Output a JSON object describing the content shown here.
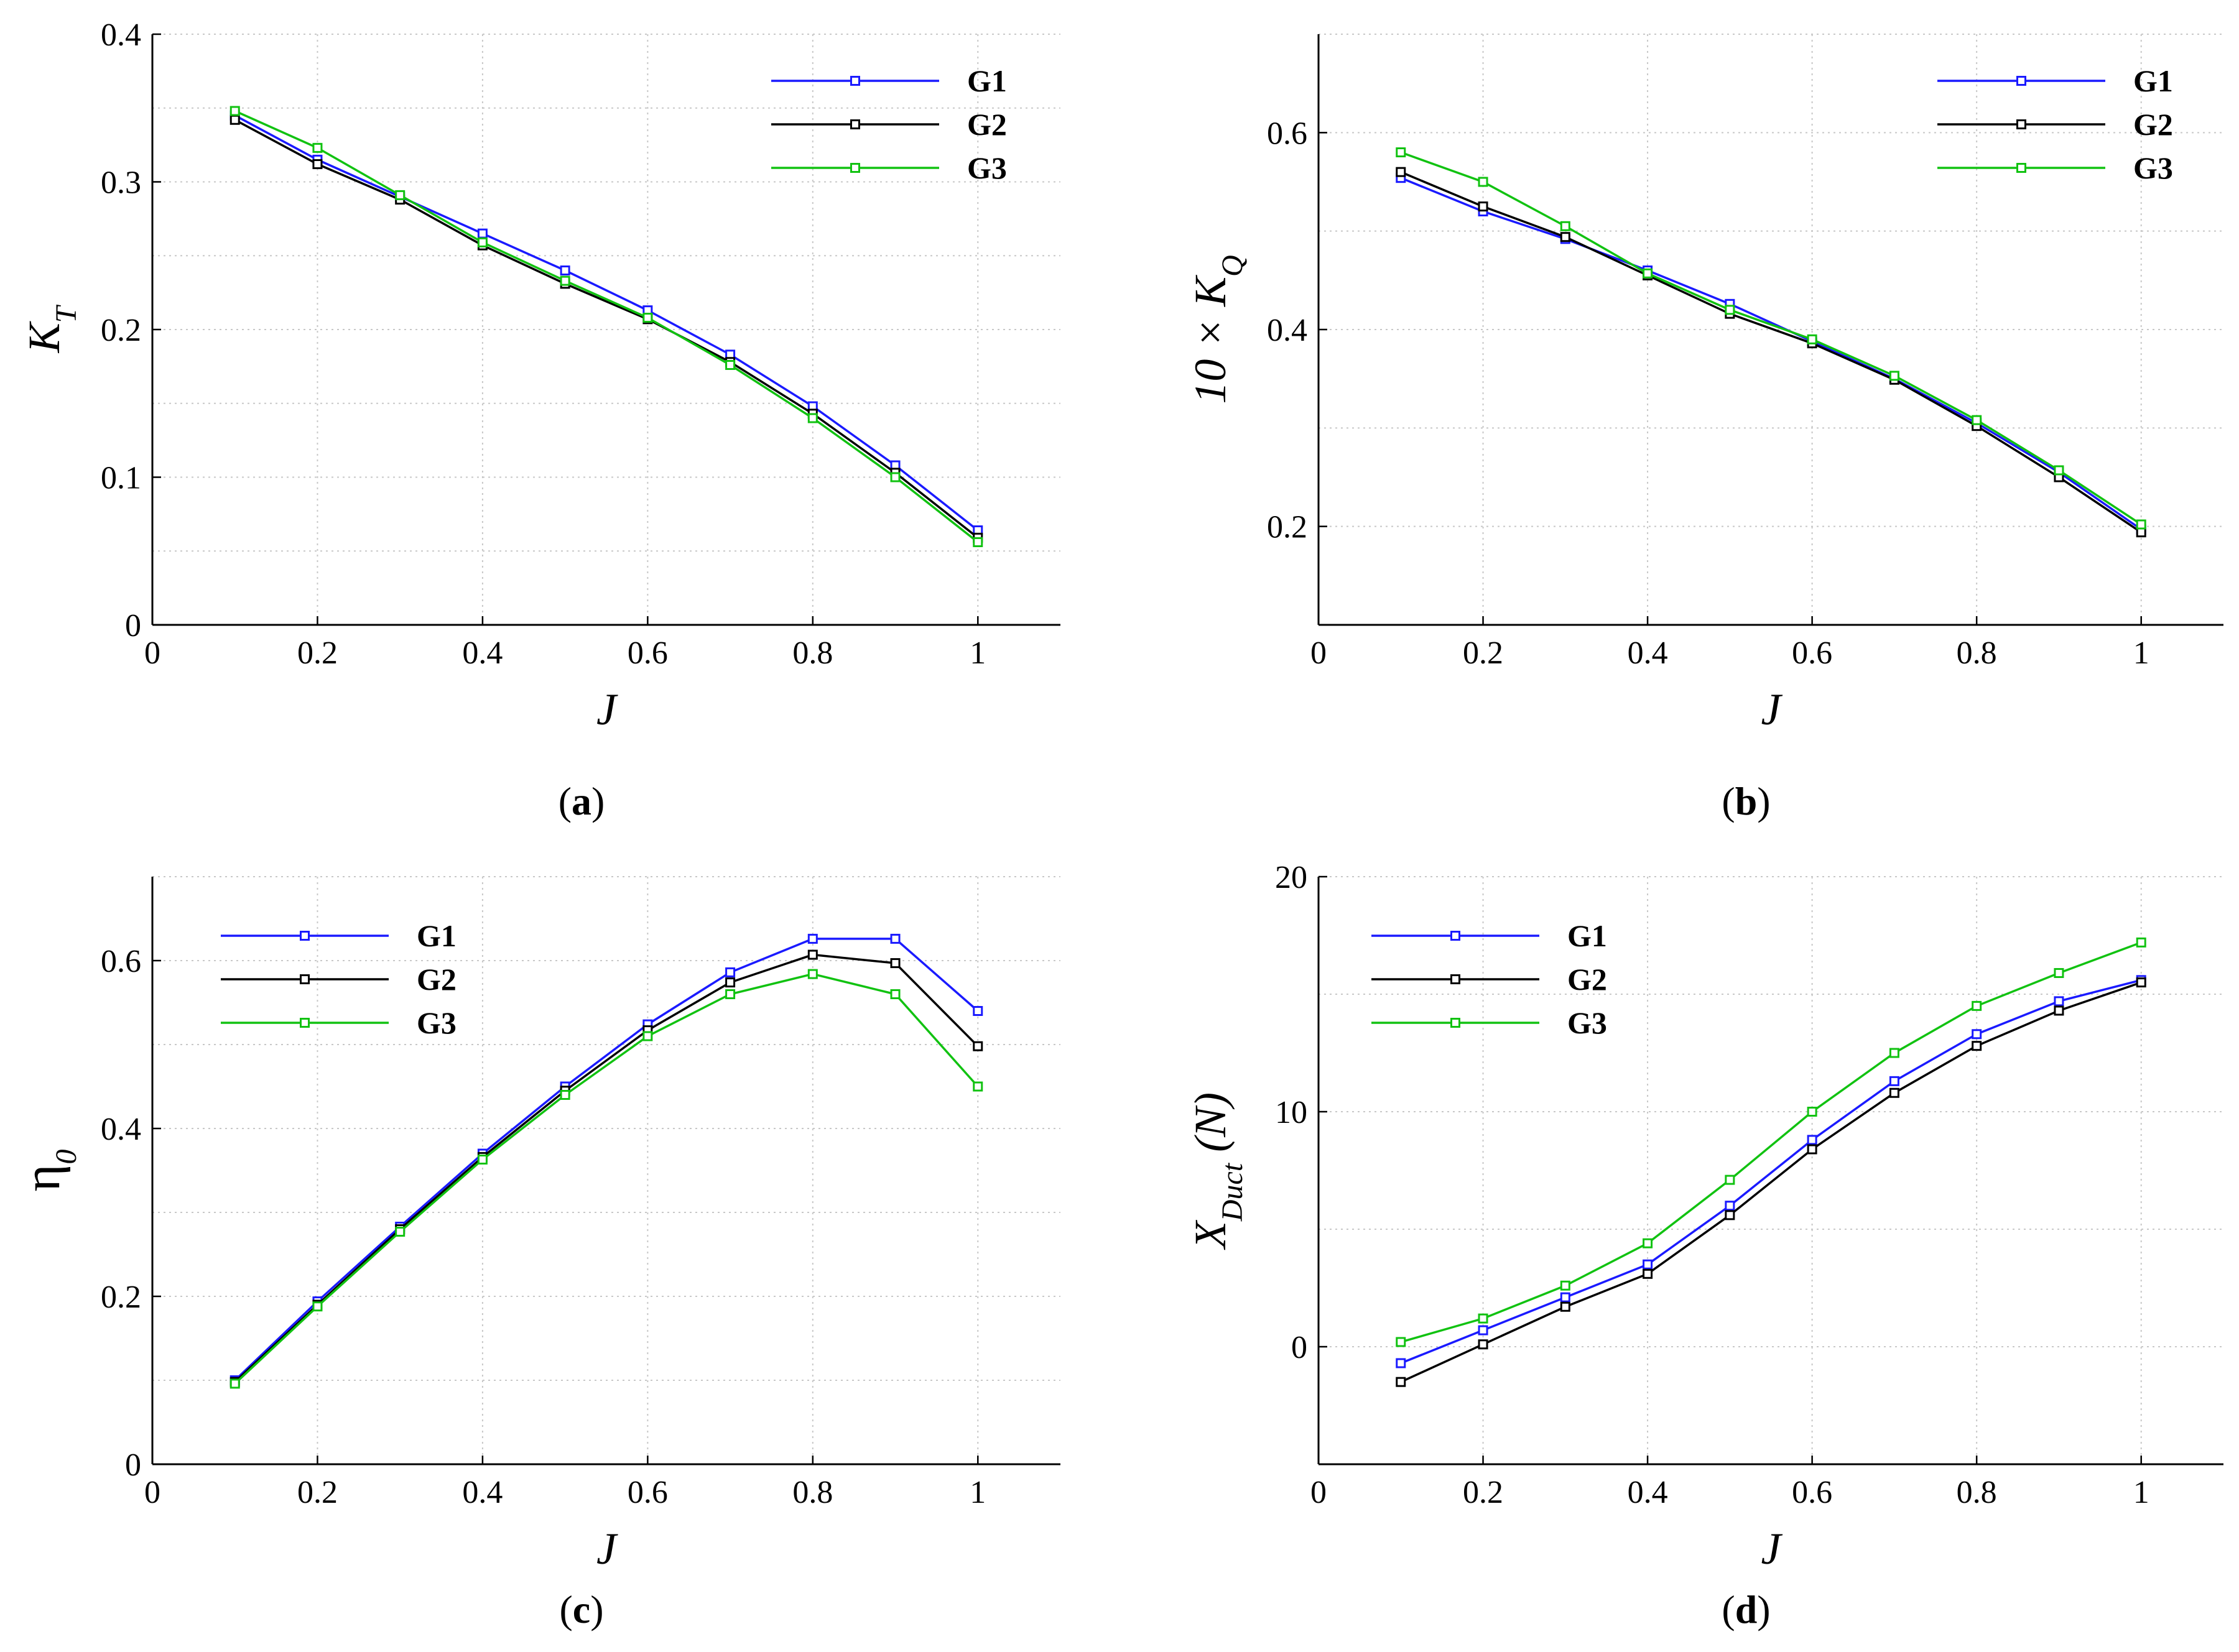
{
  "colors": {
    "G1": "#1a1aff",
    "G2": "#000000",
    "G3": "#11c211"
  },
  "chart_data": [
    {
      "id": "a",
      "type": "line",
      "panel_label": "(a)",
      "xlabel": "J",
      "ylabel": "K",
      "ylabel_sub": "T",
      "xlim": [
        0,
        1.1
      ],
      "ylim": [
        0,
        0.4
      ],
      "xticks": [
        0,
        0.2,
        0.4,
        0.6,
        0.8,
        1
      ],
      "xtick_labels": [
        "0",
        "0.2",
        "0.4",
        "0.6",
        "0.8",
        "1"
      ],
      "yticks": [
        0,
        0.1,
        0.2,
        0.3,
        0.4
      ],
      "ytick_labels": [
        "0",
        "0.1",
        "0.2",
        "0.3",
        "0.4"
      ],
      "grid": true,
      "legend": "top-right",
      "x": [
        0.1,
        0.2,
        0.3,
        0.4,
        0.5,
        0.6,
        0.7,
        0.8,
        0.9,
        1.0
      ],
      "series": [
        {
          "name": "G1",
          "values": [
            0.345,
            0.315,
            0.29,
            0.265,
            0.24,
            0.213,
            0.183,
            0.148,
            0.108,
            0.064
          ]
        },
        {
          "name": "G2",
          "values": [
            0.342,
            0.312,
            0.288,
            0.257,
            0.231,
            0.207,
            0.178,
            0.143,
            0.103,
            0.059
          ]
        },
        {
          "name": "G3",
          "values": [
            0.348,
            0.323,
            0.291,
            0.259,
            0.233,
            0.208,
            0.176,
            0.14,
            0.1,
            0.056
          ]
        }
      ]
    },
    {
      "id": "b",
      "type": "line",
      "panel_label": "(b)",
      "xlabel": "J",
      "ylabel": "10 × K",
      "ylabel_sub": "Q",
      "xlim": [
        0,
        1.1
      ],
      "ylim": [
        0.1,
        0.7
      ],
      "xticks": [
        0,
        0.2,
        0.4,
        0.6,
        0.8,
        1
      ],
      "xtick_labels": [
        "0",
        "0.2",
        "0.4",
        "0.6",
        "0.8",
        "1"
      ],
      "yticks": [
        0.2,
        0.4,
        0.6
      ],
      "ytick_labels": [
        "0.2",
        "0.4",
        "0.6"
      ],
      "grid": true,
      "legend": "top-right",
      "x": [
        0.1,
        0.2,
        0.3,
        0.4,
        0.5,
        0.6,
        0.7,
        0.8,
        0.9,
        1.0
      ],
      "series": [
        {
          "name": "G1",
          "values": [
            0.554,
            0.52,
            0.492,
            0.46,
            0.426,
            0.388,
            0.35,
            0.305,
            0.255,
            0.197
          ]
        },
        {
          "name": "G2",
          "values": [
            0.56,
            0.525,
            0.494,
            0.455,
            0.416,
            0.386,
            0.349,
            0.302,
            0.25,
            0.194
          ]
        },
        {
          "name": "G3",
          "values": [
            0.58,
            0.55,
            0.505,
            0.457,
            0.42,
            0.39,
            0.353,
            0.308,
            0.257,
            0.202
          ]
        }
      ]
    },
    {
      "id": "c",
      "type": "line",
      "panel_label": "(c)",
      "xlabel": "J",
      "ylabel": "η",
      "ylabel_sub": "0",
      "xlim": [
        0,
        1.1
      ],
      "ylim": [
        0,
        0.7
      ],
      "xticks": [
        0,
        0.2,
        0.4,
        0.6,
        0.8,
        1
      ],
      "xtick_labels": [
        "0",
        "0.2",
        "0.4",
        "0.6",
        "0.8",
        "1"
      ],
      "yticks": [
        0,
        0.2,
        0.4,
        0.6
      ],
      "ytick_labels": [
        "0",
        "0.2",
        "0.4",
        "0.6"
      ],
      "grid": true,
      "legend": "top-left",
      "x": [
        0.1,
        0.2,
        0.3,
        0.4,
        0.5,
        0.6,
        0.7,
        0.8,
        0.9,
        1.0
      ],
      "series": [
        {
          "name": "G1",
          "values": [
            0.1,
            0.194,
            0.283,
            0.37,
            0.45,
            0.524,
            0.586,
            0.626,
            0.626,
            0.54
          ]
        },
        {
          "name": "G2",
          "values": [
            0.098,
            0.19,
            0.28,
            0.366,
            0.445,
            0.517,
            0.574,
            0.607,
            0.597,
            0.498
          ]
        },
        {
          "name": "G3",
          "values": [
            0.096,
            0.188,
            0.277,
            0.363,
            0.44,
            0.51,
            0.56,
            0.584,
            0.56,
            0.45
          ]
        }
      ]
    },
    {
      "id": "d",
      "type": "line",
      "panel_label": "(d)",
      "xlabel": "J",
      "ylabel": "X",
      "ylabel_sub": "Duct",
      "ylabel_suffix": " (N)",
      "xlim": [
        0,
        1.1
      ],
      "ylim": [
        -5,
        20
      ],
      "xticks": [
        0,
        0.2,
        0.4,
        0.6,
        0.8,
        1
      ],
      "xtick_labels": [
        "0",
        "0.2",
        "0.4",
        "0.6",
        "0.8",
        "1"
      ],
      "yticks": [
        0,
        10,
        20
      ],
      "ytick_labels": [
        "0",
        "10",
        "20"
      ],
      "grid": true,
      "legend": "top-left",
      "x": [
        0.1,
        0.2,
        0.3,
        0.4,
        0.5,
        0.6,
        0.7,
        0.8,
        0.9,
        1.0
      ],
      "series": [
        {
          "name": "G1",
          "values": [
            -0.7,
            0.7,
            2.1,
            3.5,
            6.0,
            8.8,
            11.3,
            13.3,
            14.7,
            15.6
          ]
        },
        {
          "name": "G2",
          "values": [
            -1.5,
            0.1,
            1.7,
            3.1,
            5.6,
            8.4,
            10.8,
            12.8,
            14.3,
            15.5
          ]
        },
        {
          "name": "G3",
          "values": [
            0.2,
            1.2,
            2.6,
            4.4,
            7.1,
            10.0,
            12.5,
            14.5,
            15.9,
            17.2
          ]
        }
      ]
    }
  ]
}
